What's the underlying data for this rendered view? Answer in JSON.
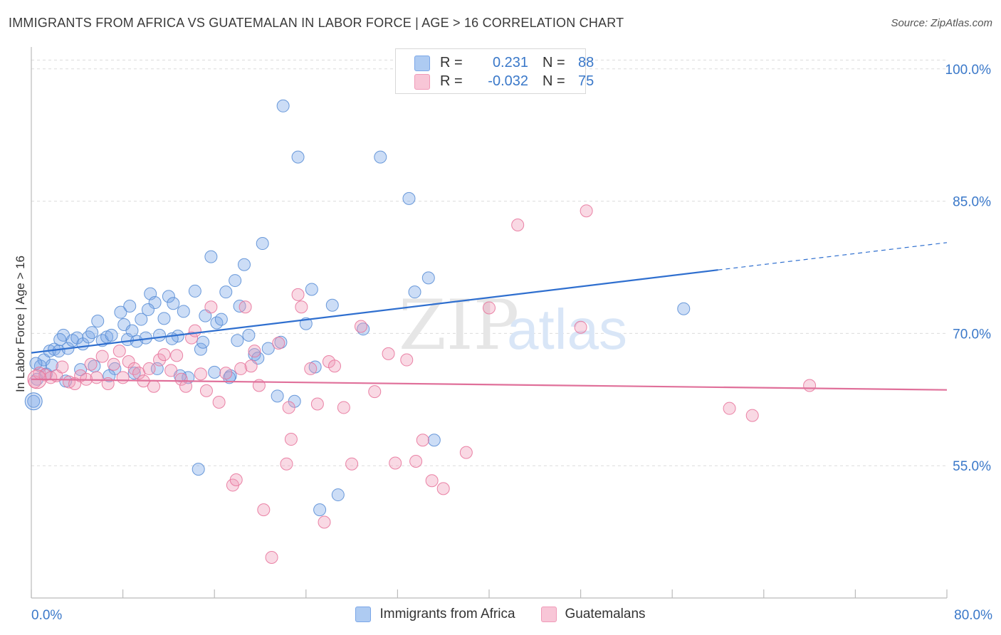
{
  "title": "IMMIGRANTS FROM AFRICA VS GUATEMALAN IN LABOR FORCE | AGE > 16 CORRELATION CHART",
  "source": "Source: ZipAtlas.com",
  "watermark": {
    "zip": "ZIP",
    "atlas": "atlas"
  },
  "legend_box": {
    "rows": [
      {
        "r_label": "R =",
        "r_value": "0.231",
        "n_label": "N =",
        "n_value": "88",
        "color": "#7aa6e8"
      },
      {
        "r_label": "R =",
        "r_value": "-0.032",
        "n_label": "N =",
        "n_value": "75",
        "color": "#f09ab8"
      }
    ]
  },
  "chart_data": {
    "type": "scatter",
    "title": "IMMIGRANTS FROM AFRICA VS GUATEMALAN IN LABOR FORCE | AGE > 16 CORRELATION CHART",
    "xlabel": "",
    "ylabel": "In Labor Force | Age > 16",
    "xlim": [
      0,
      80
    ],
    "ylim": [
      40,
      102
    ],
    "x_tick_labels": [
      "0.0%",
      "80.0%"
    ],
    "y_ticks": [
      55,
      70,
      85,
      100
    ],
    "y_tick_labels": [
      "55.0%",
      "70.0%",
      "85.0%",
      "100.0%"
    ],
    "grid": true,
    "series": [
      {
        "name": "Immigrants from Africa",
        "color": "#7aa6e8",
        "stroke": "#5b8fd6",
        "trend": {
          "x0": 0,
          "y0": 67.8,
          "x1": 60,
          "y1": 77.2,
          "dash_x1": 80,
          "dash_y1": 80.3,
          "color": "#2f6fcf"
        },
        "points": [
          [
            0.2,
            62.3
          ],
          [
            0.5,
            64.8
          ],
          [
            0.8,
            66.3
          ],
          [
            1.1,
            67.0
          ],
          [
            1.3,
            65.4
          ],
          [
            1.6,
            68.0
          ],
          [
            2.0,
            68.2
          ],
          [
            2.4,
            68.0
          ],
          [
            2.8,
            69.8
          ],
          [
            3.2,
            68.3
          ],
          [
            3.6,
            69.2
          ],
          [
            4.0,
            69.5
          ],
          [
            4.5,
            68.8
          ],
          [
            5.0,
            69.6
          ],
          [
            5.5,
            66.3
          ],
          [
            5.8,
            71.4
          ],
          [
            6.2,
            69.2
          ],
          [
            6.6,
            69.6
          ],
          [
            7.0,
            69.8
          ],
          [
            7.3,
            66.0
          ],
          [
            7.8,
            72.4
          ],
          [
            8.1,
            71.0
          ],
          [
            8.4,
            69.3
          ],
          [
            8.8,
            70.3
          ],
          [
            9.2,
            69.1
          ],
          [
            9.6,
            71.6
          ],
          [
            10.0,
            69.5
          ],
          [
            10.4,
            74.5
          ],
          [
            10.8,
            73.5
          ],
          [
            11.2,
            69.8
          ],
          [
            11.6,
            71.7
          ],
          [
            12.0,
            74.2
          ],
          [
            12.4,
            73.4
          ],
          [
            12.8,
            69.7
          ],
          [
            13.3,
            72.5
          ],
          [
            13.7,
            65.0
          ],
          [
            14.3,
            74.8
          ],
          [
            14.8,
            68.2
          ],
          [
            15.2,
            72.0
          ],
          [
            15.7,
            78.7
          ],
          [
            16.2,
            71.2
          ],
          [
            16.6,
            71.6
          ],
          [
            17.0,
            74.7
          ],
          [
            17.4,
            65.2
          ],
          [
            17.8,
            76.0
          ],
          [
            18.2,
            73.1
          ],
          [
            18.6,
            77.8
          ],
          [
            19.0,
            69.8
          ],
          [
            19.5,
            67.6
          ],
          [
            20.2,
            80.2
          ],
          [
            21.5,
            62.9
          ],
          [
            22.0,
            95.8
          ],
          [
            23.0,
            62.3
          ],
          [
            23.3,
            90.0
          ],
          [
            24.0,
            71.1
          ],
          [
            24.5,
            75.0
          ],
          [
            24.8,
            66.2
          ],
          [
            25.2,
            50.0
          ],
          [
            26.3,
            73.2
          ],
          [
            26.8,
            51.7
          ],
          [
            29.0,
            70.5
          ],
          [
            30.5,
            90.0
          ],
          [
            33.0,
            85.3
          ],
          [
            33.5,
            74.7
          ],
          [
            34.7,
            76.3
          ],
          [
            35.2,
            57.9
          ],
          [
            57.0,
            72.8
          ],
          [
            14.6,
            54.6
          ],
          [
            16.0,
            65.6
          ],
          [
            17.3,
            65.0
          ],
          [
            19.8,
            67.2
          ],
          [
            20.7,
            68.3
          ],
          [
            11.0,
            66.0
          ],
          [
            9.0,
            65.5
          ],
          [
            6.8,
            65.2
          ],
          [
            4.3,
            65.9
          ],
          [
            3.0,
            64.6
          ],
          [
            1.8,
            66.4
          ],
          [
            0.4,
            66.6
          ],
          [
            12.3,
            69.4
          ],
          [
            13.0,
            65.2
          ],
          [
            15.0,
            69.0
          ],
          [
            18.0,
            69.2
          ],
          [
            21.8,
            69.0
          ],
          [
            8.6,
            73.1
          ],
          [
            10.2,
            72.7
          ],
          [
            2.5,
            69.3
          ],
          [
            5.3,
            70.1
          ]
        ]
      },
      {
        "name": "Guatemalans",
        "color": "#f09ab8",
        "stroke": "#e8769c",
        "trend": {
          "x0": 0,
          "y0": 64.8,
          "x1": 80,
          "y1": 63.6,
          "color": "#e0709a"
        },
        "points": [
          [
            0.3,
            64.5
          ],
          [
            0.7,
            65.5
          ],
          [
            1.2,
            65.3
          ],
          [
            1.7,
            65.0
          ],
          [
            2.2,
            65.2
          ],
          [
            2.7,
            66.2
          ],
          [
            3.3,
            64.5
          ],
          [
            3.8,
            64.3
          ],
          [
            4.3,
            65.2
          ],
          [
            4.8,
            64.8
          ],
          [
            5.2,
            66.5
          ],
          [
            5.7,
            65.0
          ],
          [
            6.2,
            67.4
          ],
          [
            6.7,
            64.3
          ],
          [
            7.2,
            66.5
          ],
          [
            7.7,
            68.0
          ],
          [
            8.0,
            65.0
          ],
          [
            8.5,
            66.8
          ],
          [
            9.0,
            66.0
          ],
          [
            9.4,
            65.5
          ],
          [
            9.8,
            64.6
          ],
          [
            10.3,
            66.0
          ],
          [
            10.7,
            64.0
          ],
          [
            11.2,
            67.0
          ],
          [
            11.6,
            67.6
          ],
          [
            12.2,
            65.8
          ],
          [
            12.7,
            67.5
          ],
          [
            13.1,
            64.8
          ],
          [
            13.5,
            64.0
          ],
          [
            14.0,
            69.5
          ],
          [
            14.3,
            70.3
          ],
          [
            14.8,
            65.4
          ],
          [
            15.3,
            63.5
          ],
          [
            15.7,
            73.0
          ],
          [
            16.4,
            62.2
          ],
          [
            17.0,
            65.5
          ],
          [
            17.6,
            52.8
          ],
          [
            17.9,
            53.4
          ],
          [
            18.3,
            66.0
          ],
          [
            18.7,
            73.0
          ],
          [
            19.2,
            66.3
          ],
          [
            19.5,
            68.0
          ],
          [
            19.9,
            64.1
          ],
          [
            20.3,
            50.0
          ],
          [
            21.0,
            44.6
          ],
          [
            21.6,
            68.9
          ],
          [
            22.3,
            55.2
          ],
          [
            22.7,
            58.0
          ],
          [
            22.5,
            61.6
          ],
          [
            23.3,
            74.4
          ],
          [
            23.6,
            73.0
          ],
          [
            24.4,
            66.0
          ],
          [
            25.0,
            62.0
          ],
          [
            25.6,
            48.6
          ],
          [
            26.0,
            66.8
          ],
          [
            26.5,
            66.3
          ],
          [
            27.3,
            61.6
          ],
          [
            28.0,
            55.2
          ],
          [
            28.8,
            70.8
          ],
          [
            30.0,
            63.4
          ],
          [
            31.2,
            67.7
          ],
          [
            31.8,
            55.3
          ],
          [
            32.8,
            67.0
          ],
          [
            33.6,
            55.5
          ],
          [
            34.2,
            57.9
          ],
          [
            35.0,
            53.3
          ],
          [
            36.0,
            52.4
          ],
          [
            38.0,
            56.5
          ],
          [
            40.0,
            72.9
          ],
          [
            42.5,
            82.3
          ],
          [
            48.5,
            83.9
          ],
          [
            61.0,
            61.5
          ],
          [
            63.0,
            60.7
          ],
          [
            68.0,
            64.1
          ],
          [
            48.0,
            70.7
          ]
        ]
      }
    ]
  },
  "legend_bottom": [
    {
      "label": "Immigrants from Africa",
      "color": "#aecbf2",
      "stroke": "#7aa6e8"
    },
    {
      "label": "Guatemalans",
      "color": "#f8c6d7",
      "stroke": "#f09ab8"
    }
  ]
}
